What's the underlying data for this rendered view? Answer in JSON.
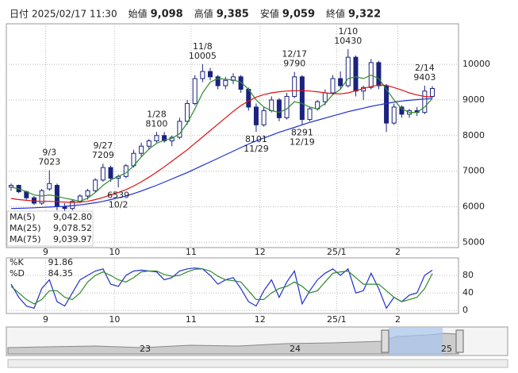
{
  "header": {
    "items": [
      {
        "label": "日付",
        "value": "2025/02/17 11:30"
      },
      {
        "label": "始値",
        "value": "9,098"
      },
      {
        "label": "高値",
        "value": "9,385"
      },
      {
        "label": "安値",
        "value": "9,059"
      },
      {
        "label": "終値",
        "value": "9,322"
      }
    ]
  },
  "navigator": {
    "labels": [
      "23",
      "24",
      "25"
    ]
  },
  "chart_data": [
    {
      "type": "candlestick",
      "categories": [
        null,
        null,
        null,
        null,
        null,
        "9",
        null,
        null,
        null,
        null,
        null,
        null,
        null,
        null,
        "10",
        null,
        null,
        null,
        null,
        null,
        null,
        null,
        null,
        null,
        "11",
        null,
        null,
        null,
        null,
        null,
        null,
        null,
        null,
        "12",
        null,
        null,
        null,
        null,
        null,
        null,
        null,
        null,
        null,
        "25/1",
        null,
        null,
        null,
        null,
        null,
        null,
        null,
        "2",
        null,
        null,
        null,
        null
      ],
      "open": [
        6550,
        6600,
        6420,
        6250,
        6100,
        6500,
        6600,
        6000,
        5950,
        6150,
        6300,
        6450,
        6750,
        7100,
        6800,
        6850,
        7150,
        7500,
        7700,
        7850,
        8000,
        7850,
        7950,
        8400,
        8900,
        9600,
        9800,
        9650,
        9400,
        9550,
        9650,
        9300,
        8800,
        8300,
        8700,
        9000,
        8500,
        9100,
        9650,
        8450,
        8750,
        8950,
        9200,
        9600,
        9400,
        10200,
        9250,
        9350,
        10050,
        9400,
        8350,
        8800,
        8600,
        8700,
        8650,
        9098
      ],
      "high": [
        6650,
        6620,
        6450,
        6300,
        6500,
        7023,
        6650,
        6100,
        6200,
        6350,
        6500,
        6800,
        7209,
        7150,
        6900,
        7200,
        7600,
        7800,
        7900,
        8100,
        8100,
        8000,
        8500,
        9000,
        9700,
        10005,
        9900,
        9700,
        9650,
        9750,
        9700,
        9350,
        8900,
        8800,
        9100,
        9050,
        9200,
        9790,
        9700,
        8800,
        9000,
        9300,
        9700,
        9800,
        10430,
        10250,
        9400,
        10150,
        10100,
        9450,
        8900,
        8850,
        8750,
        8800,
        9403,
        9385
      ],
      "low": [
        6450,
        6380,
        6200,
        6050,
        6050,
        6450,
        5900,
        5880,
        5900,
        6100,
        6200,
        6400,
        6700,
        6700,
        6539,
        6800,
        7100,
        7400,
        7600,
        7800,
        7800,
        7700,
        7900,
        8300,
        8850,
        9500,
        9550,
        9300,
        9300,
        9450,
        9200,
        8700,
        8101,
        8250,
        8650,
        8400,
        8450,
        9050,
        8291,
        8400,
        8700,
        8850,
        9150,
        9300,
        9350,
        9100,
        9000,
        9300,
        9300,
        8100,
        8300,
        8500,
        8500,
        8550,
        8600,
        9059
      ],
      "close": [
        6600,
        6420,
        6250,
        6100,
        6450,
        6650,
        6000,
        5950,
        6150,
        6300,
        6450,
        6750,
        7100,
        6800,
        6850,
        7150,
        7500,
        7700,
        7850,
        8000,
        7850,
        7950,
        8400,
        8900,
        9600,
        9800,
        9650,
        9400,
        9550,
        9650,
        9300,
        8800,
        8300,
        8700,
        9000,
        8500,
        9100,
        9650,
        8450,
        8750,
        8950,
        9200,
        9600,
        9400,
        10200,
        9250,
        9350,
        10050,
        9400,
        8350,
        8800,
        8600,
        8700,
        8650,
        9250,
        9322
      ],
      "color_up": "#ffffff",
      "color_down": "#1a237e",
      "series": [
        {
          "name": "MA(5)",
          "color": "#2e8b2e",
          "legend_value": "9,042.80",
          "values": [
            6550,
            6500,
            6420,
            6330,
            6300,
            6330,
            6290,
            6240,
            6200,
            6150,
            6240,
            6400,
            6600,
            6750,
            6850,
            6950,
            7150,
            7400,
            7620,
            7780,
            7870,
            7920,
            8050,
            8350,
            8750,
            9200,
            9500,
            9600,
            9580,
            9560,
            9500,
            9300,
            9000,
            8800,
            8700,
            8650,
            8750,
            8950,
            8900,
            8800,
            8750,
            8900,
            9150,
            9300,
            9600,
            9650,
            9600,
            9700,
            9600,
            9300,
            9000,
            8750,
            8650,
            8650,
            8800,
            9042.8
          ]
        },
        {
          "name": "MA(25)",
          "color": "#e01010",
          "legend_value": "9,078.52",
          "values": [
            6230,
            6200,
            6180,
            6160,
            6150,
            6150,
            6140,
            6130,
            6120,
            6130,
            6150,
            6200,
            6260,
            6330,
            6400,
            6480,
            6580,
            6700,
            6830,
            6970,
            7120,
            7280,
            7440,
            7600,
            7780,
            7960,
            8140,
            8320,
            8500,
            8680,
            8840,
            8970,
            9080,
            9150,
            9200,
            9230,
            9250,
            9260,
            9260,
            9250,
            9230,
            9200,
            9180,
            9170,
            9200,
            9260,
            9320,
            9380,
            9420,
            9410,
            9350,
            9280,
            9200,
            9140,
            9100,
            9078.52
          ]
        },
        {
          "name": "MA(75)",
          "color": "#2030d0",
          "legend_value": "9,039.97",
          "values": [
            5950,
            5955,
            5960,
            5970,
            5980,
            5990,
            6000,
            6010,
            6030,
            6050,
            6080,
            6110,
            6150,
            6200,
            6250,
            6300,
            6370,
            6440,
            6520,
            6600,
            6690,
            6780,
            6870,
            6960,
            7060,
            7160,
            7260,
            7360,
            7460,
            7560,
            7660,
            7760,
            7850,
            7930,
            8010,
            8090,
            8160,
            8230,
            8300,
            8370,
            8430,
            8490,
            8550,
            8610,
            8670,
            8720,
            8770,
            8820,
            8860,
            8900,
            8940,
            8970,
            8990,
            9010,
            9025,
            9039.97
          ]
        }
      ],
      "annotations": [
        {
          "date": "9/3",
          "price": 7023
        },
        {
          "date": "9/27",
          "price": 7209
        },
        {
          "date": "10/2",
          "price": 6539
        },
        {
          "date": "11/8",
          "price": 10005
        },
        {
          "date": "11/29",
          "price": 8101
        },
        {
          "date": "12/17",
          "price": 9790
        },
        {
          "date": "12/19",
          "price": 8291
        },
        {
          "date": "1/10",
          "price": 10430
        },
        {
          "date": "1/28",
          "price": 8100
        },
        {
          "date": "2/14",
          "price": 9403
        }
      ],
      "ylim": [
        4850,
        11140
      ],
      "yticks": [
        5000,
        6000,
        7000,
        8000,
        9000,
        10000
      ],
      "grid": true
    },
    {
      "type": "line",
      "series": [
        {
          "name": "%K",
          "color": "#2030d0",
          "legend_value": "91.86",
          "values": [
            60,
            30,
            10,
            5,
            50,
            70,
            20,
            10,
            40,
            70,
            80,
            90,
            95,
            60,
            55,
            80,
            90,
            92,
            90,
            88,
            70,
            75,
            90,
            95,
            97,
            95,
            80,
            60,
            70,
            75,
            50,
            20,
            10,
            45,
            70,
            30,
            65,
            90,
            15,
            45,
            70,
            85,
            95,
            80,
            95,
            40,
            45,
            85,
            50,
            5,
            30,
            20,
            35,
            40,
            80,
            91.86
          ]
        },
        {
          "name": "%D",
          "color": "#2e8b2e",
          "legend_value": "84.35",
          "values": [
            55,
            40,
            25,
            15,
            25,
            45,
            45,
            30,
            25,
            40,
            65,
            80,
            88,
            80,
            70,
            65,
            75,
            88,
            90,
            90,
            82,
            78,
            80,
            88,
            94,
            95,
            90,
            78,
            70,
            68,
            65,
            45,
            25,
            25,
            40,
            50,
            55,
            65,
            55,
            40,
            45,
            65,
            85,
            88,
            90,
            75,
            60,
            60,
            60,
            45,
            30,
            20,
            25,
            30,
            50,
            84.35
          ]
        }
      ],
      "ylim": [
        -7,
        120
      ],
      "yticks": [
        0,
        40,
        80
      ],
      "grid": true
    }
  ]
}
